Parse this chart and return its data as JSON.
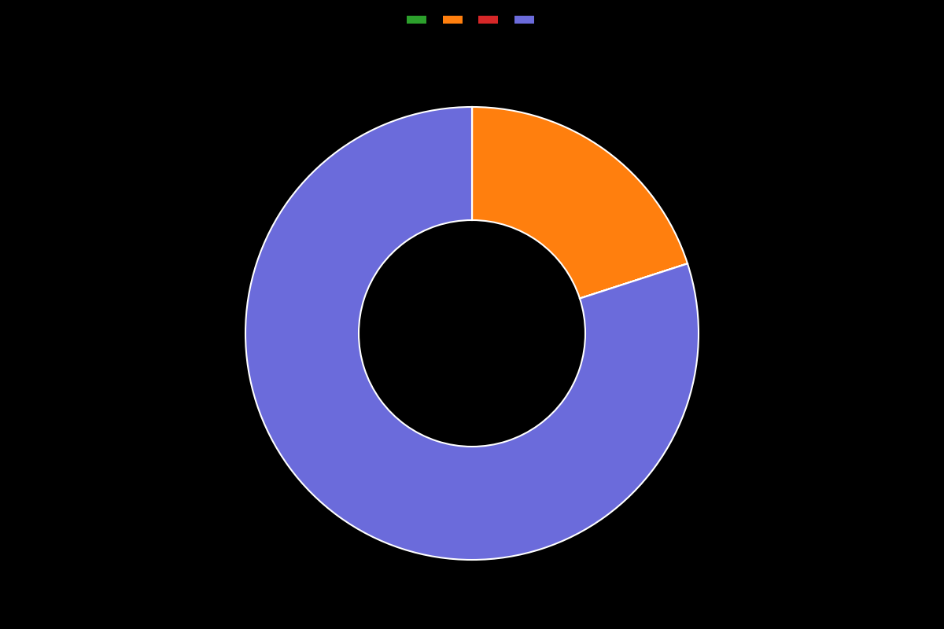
{
  "slices": [
    0.01,
    20.0,
    0.01,
    79.98
  ],
  "colors": [
    "#2ca02c",
    "#ff7f0e",
    "#d62728",
    "#6b6bdb"
  ],
  "legend_colors": [
    "#2ca02c",
    "#ff7f0e",
    "#d62728",
    "#6b6bdb"
  ],
  "legend_labels": [
    "",
    "",
    "",
    ""
  ],
  "background_color": "#000000",
  "wedge_linewidth": 1.5,
  "wedge_linecolor": "#ffffff",
  "donut_width": 0.5,
  "start_angle": 90,
  "figsize": [
    12,
    8
  ],
  "dpi": 100
}
